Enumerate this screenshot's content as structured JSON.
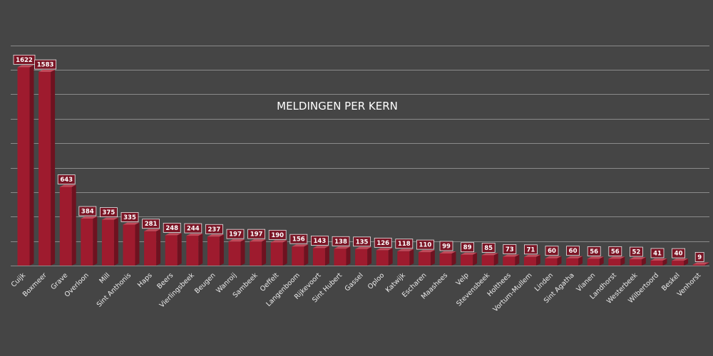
{
  "colors": {
    "background": "#454545",
    "bar_front": "#9e1b2e",
    "bar_side": "#6e1220",
    "bar_top": "#c24a5a",
    "gridline": "#8a8a8a",
    "text": "#ffffff",
    "label_box": "#7a1525"
  },
  "chart_data": {
    "type": "bar",
    "title": "MELDINGEN PER KERN",
    "xlabel": "",
    "ylabel": "",
    "ylim": [
      0,
      1800
    ],
    "grid": true,
    "legend": "none",
    "categories": [
      "Cuijk",
      "Boxmeer",
      "Grave",
      "Overloon",
      "Mill",
      "Sint Anthonis",
      "Haps",
      "Beers",
      "Vierlingsbeek",
      "Beugen",
      "Wanroij",
      "Sambeek",
      "Oeffelt",
      "Langenboom",
      "Rijkevoort",
      "Sint Hubert",
      "Gassel",
      "Oploo",
      "Katwijk",
      "Escharen",
      "Maashees",
      "Velp",
      "Stevensbeek",
      "Holthees",
      "Vortum-Mullem",
      "Linden",
      "Sint Agatha",
      "Vianen",
      "Landhorst",
      "Westerbeek",
      "Wilbertoord",
      "Beskel",
      "Venhorst"
    ],
    "values": [
      1622,
      1583,
      643,
      384,
      375,
      335,
      281,
      248,
      244,
      237,
      197,
      197,
      190,
      156,
      143,
      138,
      135,
      126,
      118,
      110,
      99,
      89,
      85,
      73,
      71,
      60,
      60,
      56,
      56,
      52,
      41,
      40,
      9
    ]
  }
}
